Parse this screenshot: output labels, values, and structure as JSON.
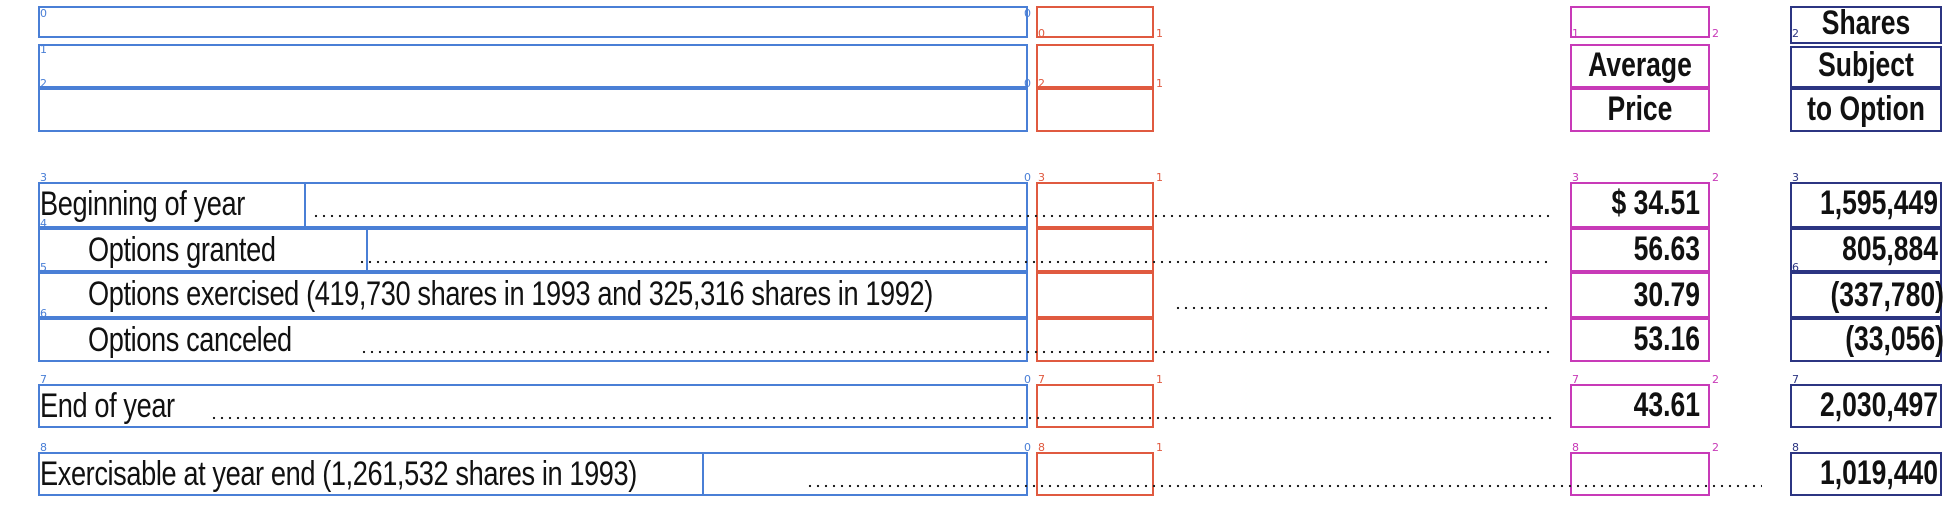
{
  "headers": {
    "avg_price_line1": "Average",
    "avg_price_line2": "Price",
    "shares_line1": "Shares",
    "shares_line2": "Subject",
    "shares_line3": "to Option"
  },
  "rows": [
    {
      "label": "Beginning of year",
      "price": "$ 34.51",
      "shares": "1,595,449"
    },
    {
      "label": "Options granted",
      "price": "56.63",
      "shares": "805,884"
    },
    {
      "label": "Options exercised (419,730 shares in 1993 and 325,316 shares in 1992)",
      "price": "30.79",
      "shares": "(337,780)"
    },
    {
      "label": "Options canceled",
      "price": "53.16",
      "shares": "(33,056)"
    },
    {
      "label": "End of year",
      "price": "43.61",
      "shares": "2,030,497"
    },
    {
      "label": "Exercisable at year end (1,261,532 shares in 1993)",
      "price": "",
      "shares": "1,019,440"
    }
  ],
  "box_indices": {
    "r0": "0",
    "r1": "1",
    "r2": "2",
    "r3": "3",
    "r4": "4",
    "r5": "5",
    "r6": "6",
    "r7": "7",
    "r8": "8"
  }
}
